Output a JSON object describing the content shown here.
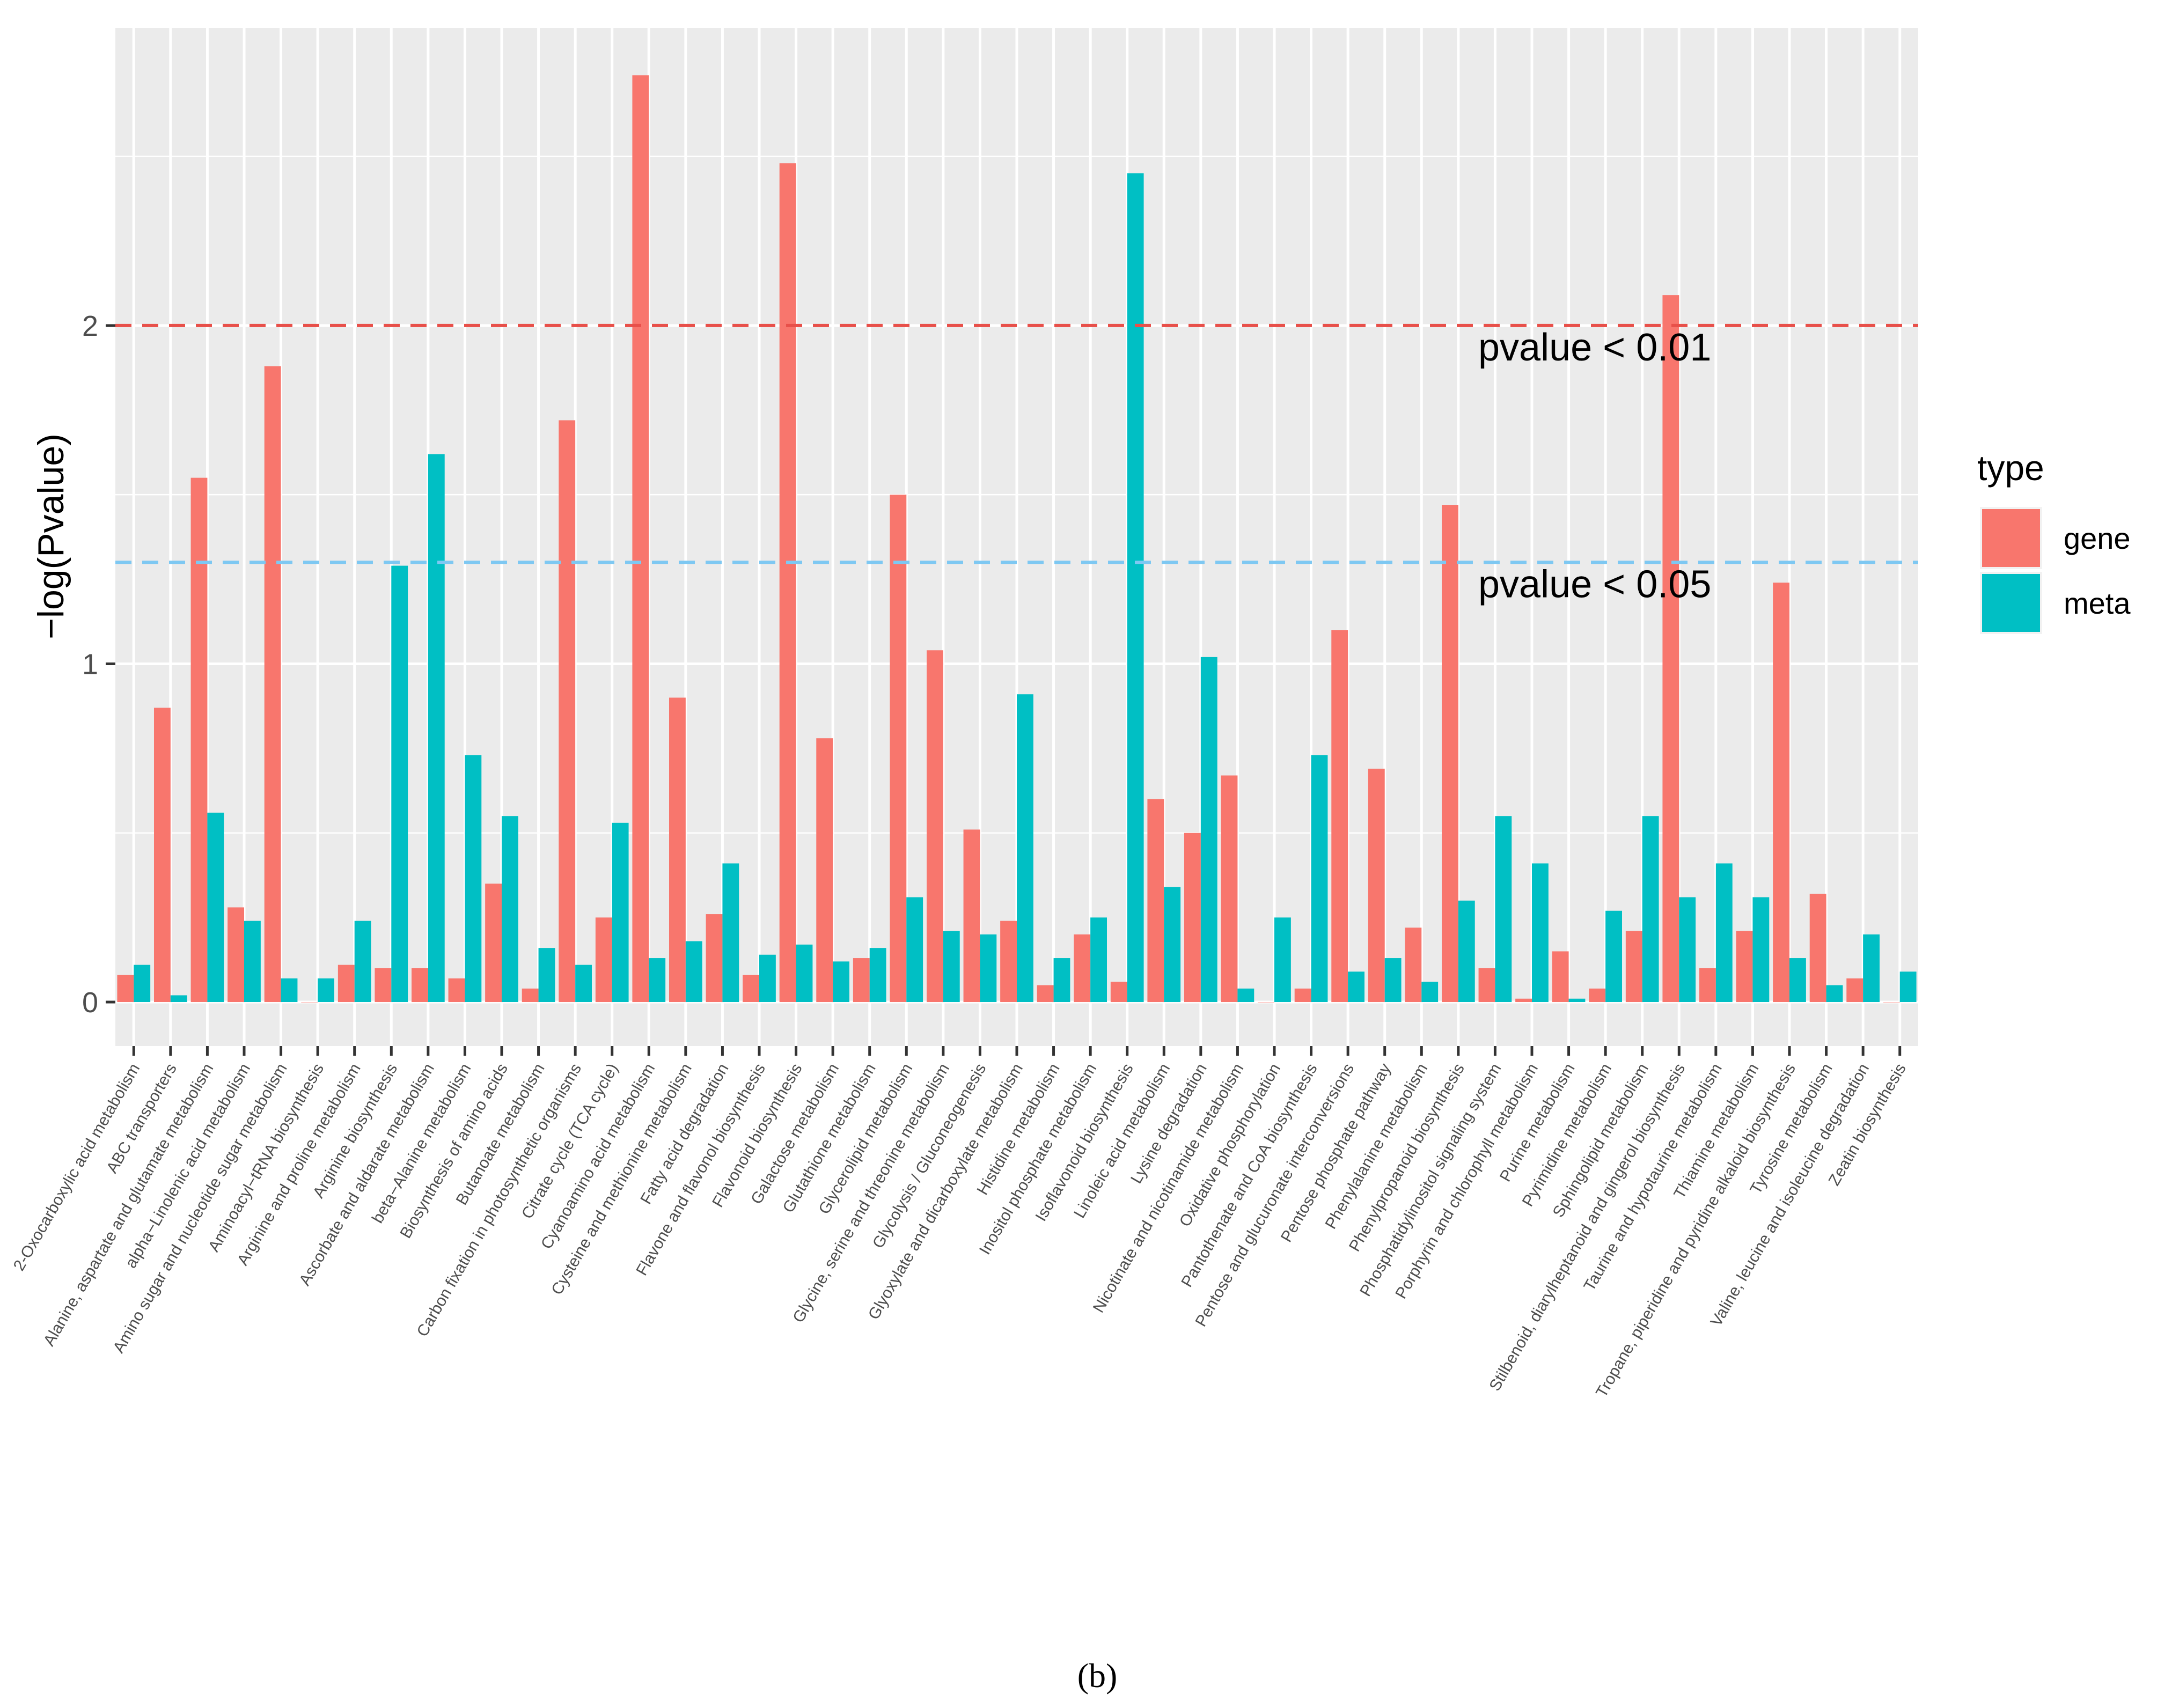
{
  "chart_data": {
    "type": "bar",
    "ylabel": "−log(Pvalue)",
    "xlabel": "",
    "ylim": [
      -0.13,
      2.88
    ],
    "yticks": [
      0,
      1,
      2
    ],
    "yminor": [
      0.5,
      1.5,
      2.5
    ],
    "categories": [
      "2-Oxocarboxylic acid metabolism",
      "ABC transporters",
      "Alanine, aspartate and glutamate metabolism",
      "alpha−Linolenic acid metabolism",
      "Amino sugar and nucleotide sugar metabolism",
      "Aminoacyl−tRNA biosynthesis",
      "Arginine and proline metabolism",
      "Arginine biosynthesis",
      "Ascorbate and aldarate metabolism",
      "beta−Alanine metabolism",
      "Biosynthesis of amino acids",
      "Butanoate metabolism",
      "Carbon fixation in photosynthetic organisms",
      "Citrate cycle (TCA cycle)",
      "Cyanoamino acid metabolism",
      "Cysteine and methionine metabolism",
      "Fatty acid degradation",
      "Flavone and flavonol biosynthesis",
      "Flavonoid biosynthesis",
      "Galactose metabolism",
      "Glutathione metabolism",
      "Glycerolipid metabolism",
      "Glycine, serine and threonine metabolism",
      "Glycolysis / Gluconeogenesis",
      "Glyoxylate and dicarboxylate metabolism",
      "Histidine metabolism",
      "Inositol phosphate metabolism",
      "Isoflavonoid biosynthesis",
      "Linoleic acid metabolism",
      "Lysine degradation",
      "Nicotinate and nicotinamide metabolism",
      "Oxidative phosphorylation",
      "Pantothenate and CoA biosynthesis",
      "Pentose and glucuronate interconversions",
      "Pentose phosphate pathway",
      "Phenylalanine metabolism",
      "Phenylpropanoid biosynthesis",
      "Phosphatidylinositol signaling system",
      "Porphyrin and chlorophyll metabolism",
      "Purine metabolism",
      "Pyrimidine metabolism",
      "Sphingolipid metabolism",
      "Stilbenoid, diarylheptanoid and gingerol biosynthesis",
      "Taurine and hypotaurine metabolism",
      "Thiamine metabolism",
      "Tropane, piperidine and pyridine alkaloid biosynthesis",
      "Tyrosine metabolism",
      "Valine, leucine and isoleucine degradation",
      "Zeatin biosynthesis"
    ],
    "series": [
      {
        "name": "gene",
        "color": "#f8766d",
        "values": [
          0.08,
          0.87,
          1.55,
          0.28,
          1.88,
          0.0,
          0.11,
          0.1,
          0.1,
          0.07,
          0.35,
          0.04,
          1.72,
          0.25,
          2.74,
          0.9,
          0.26,
          0.08,
          2.48,
          0.78,
          0.13,
          1.5,
          1.04,
          0.51,
          0.24,
          0.05,
          0.2,
          0.06,
          0.6,
          0.5,
          0.67,
          0.0,
          0.04,
          1.1,
          0.69,
          0.22,
          1.47,
          0.1,
          0.01,
          0.15,
          0.04,
          0.21,
          2.09,
          0.1,
          0.21,
          1.24,
          0.32,
          0.07,
          0.0
        ]
      },
      {
        "name": "meta",
        "color": "#00bfc4",
        "values": [
          0.11,
          0.02,
          0.56,
          0.24,
          0.07,
          0.07,
          0.24,
          1.29,
          1.62,
          0.73,
          0.55,
          0.16,
          0.11,
          0.53,
          0.13,
          0.18,
          0.41,
          0.14,
          0.17,
          0.12,
          0.16,
          0.31,
          0.21,
          0.2,
          0.91,
          0.13,
          0.25,
          2.45,
          0.34,
          1.02,
          0.04,
          0.25,
          0.73,
          0.09,
          0.13,
          0.06,
          0.3,
          0.55,
          0.41,
          0.01,
          0.27,
          0.55,
          0.31,
          0.41,
          0.31,
          0.13,
          0.05,
          0.2,
          0.09
        ]
      }
    ],
    "reference_lines": [
      {
        "y": 2,
        "label": "pvalue < 0.01",
        "color": "#e8504a"
      },
      {
        "y": 1.3,
        "label": "pvalue < 0.05",
        "color": "#7ec8f2"
      }
    ],
    "legend": {
      "title": "type",
      "position": "right"
    },
    "grid": true
  },
  "caption": "(b)"
}
